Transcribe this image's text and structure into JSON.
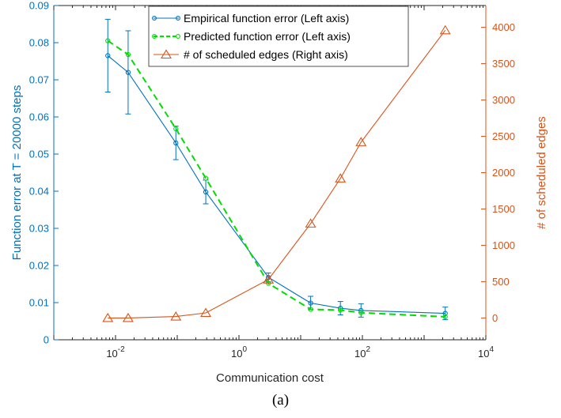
{
  "figure": {
    "caption": "(a)"
  },
  "colors": {
    "left_axis": "#0072BD",
    "right_axis": "#D95319",
    "predicted": "#00DD00",
    "text": "#262626"
  },
  "chart_data": {
    "type": "line",
    "xlabel": "Communication cost",
    "xscale": "log",
    "xlim": [
      0.001,
      10000
    ],
    "x_tick_labels": [
      {
        "base": "10",
        "exp": "-2"
      },
      {
        "base": "10",
        "exp": "0"
      },
      {
        "base": "10",
        "exp": "2"
      },
      {
        "base": "10",
        "exp": "4"
      }
    ],
    "ylabel_left": "Function error at T = 20000 steps",
    "ylim_left": [
      0,
      0.09
    ],
    "y_ticks_left": [
      "0",
      "0.01",
      "0.02",
      "0.03",
      "0.04",
      "0.05",
      "0.06",
      "0.07",
      "0.08",
      "0.09"
    ],
    "ylabel_right": "# of scheduled edges",
    "ylim_right": [
      -300,
      4300
    ],
    "y_ticks_right": [
      "0",
      "500",
      "1000",
      "1500",
      "2000",
      "2500",
      "3000",
      "3500",
      "4000"
    ],
    "legend_position": "top-center",
    "series": [
      {
        "name": "Empirical function error (Left axis)",
        "axis": "left",
        "color": "#0072BD",
        "marker": "circle",
        "style": "solid",
        "x": [
          0.0075,
          0.016,
          0.095,
          0.29,
          3.0,
          14.5,
          44,
          95,
          2200
        ],
        "y": [
          0.0765,
          0.072,
          0.053,
          0.0398,
          0.0168,
          0.0099,
          0.0085,
          0.0079,
          0.0071
        ],
        "err": [
          0.0098,
          0.0112,
          0.0045,
          0.0032,
          0.0012,
          0.0018,
          0.0018,
          0.0018,
          0.0017
        ]
      },
      {
        "name": "Predicted function error (Left axis)",
        "axis": "left",
        "color": "#00DD00",
        "marker": "circle",
        "style": "dashed",
        "x": [
          0.0075,
          0.016,
          0.095,
          0.29,
          3.0,
          14.5,
          44,
          95,
          2200
        ],
        "y": [
          0.0805,
          0.0768,
          0.0568,
          0.0435,
          0.0152,
          0.0082,
          0.008,
          0.0073,
          0.0062
        ]
      },
      {
        "name": "# of scheduled edges (Right axis)",
        "axis": "right",
        "color": "#D95319",
        "marker": "triangle",
        "style": "solid",
        "x": [
          0.0075,
          0.016,
          0.095,
          0.29,
          3.0,
          14.5,
          44,
          95,
          2200
        ],
        "y": [
          0,
          0,
          20,
          70,
          530,
          1300,
          1920,
          2420,
          3960
        ]
      }
    ]
  }
}
